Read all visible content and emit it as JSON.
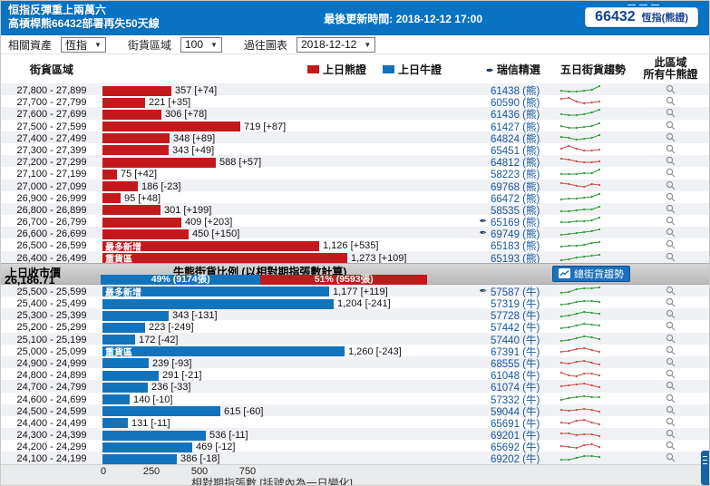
{
  "header": {
    "title_line1": "恒指反彈重上兩萬六",
    "title_line2": "高槓桿熊66432部署再失50天線",
    "update_time": "最後更新時間: 2018-12-12 17:00",
    "badge_code": "66432",
    "badge_label": "恆指(熊證)"
  },
  "filters": [
    {
      "label": "相關資產",
      "value": "恆指"
    },
    {
      "label": "街貨區域",
      "value": "100"
    },
    {
      "label": "過往圖表",
      "value": "2018-12-12"
    }
  ],
  "columns": {
    "range": "街貨區域",
    "legend_bear": "上日熊證",
    "legend_bull": "上日牛證",
    "picked": "瑞信精選",
    "trend": "五日街貨趨勢",
    "all_line1": "此區域",
    "all_line2": "所有牛熊證"
  },
  "divider": {
    "close_label": "上日收市價",
    "close_value": "26,186.71",
    "ratio_title": "牛熊街貨比例 (以相對期指張數計算)",
    "bull_segment": "49% (9174張)",
    "bear_segment": "51% (9593張)",
    "trend_button": "總街貨趨勢"
  },
  "axis": {
    "ticks": [
      "0",
      "250",
      "500",
      "750"
    ],
    "label": "相對期指張數 [括號內為一日變化]"
  },
  "colors": {
    "bear": "#c3191d",
    "bull": "#1273bd",
    "header": "#0873c2",
    "spark_up": "#2f9a3a",
    "spark_down": "#d24a45"
  },
  "bear_rows": [
    {
      "range": "27,800 - 27,899",
      "value": 357,
      "display": "357 [+74]",
      "tag": "",
      "code": "61438",
      "type": "熊",
      "picked": false,
      "trend": "up",
      "spark": [
        4,
        3,
        3,
        4,
        5,
        9
      ]
    },
    {
      "range": "27,700 - 27,799",
      "value": 221,
      "display": "221 [+35]",
      "tag": "",
      "code": "60590",
      "type": "熊",
      "picked": false,
      "trend": "down",
      "spark": [
        8,
        9,
        5,
        3,
        4,
        5
      ]
    },
    {
      "range": "27,600 - 27,699",
      "value": 306,
      "display": "306 [+78]",
      "tag": "",
      "code": "61436",
      "type": "熊",
      "picked": false,
      "trend": "up",
      "spark": [
        4,
        3,
        3,
        4,
        6,
        9
      ]
    },
    {
      "range": "27,500 - 27,599",
      "value": 719,
      "display": "719 [+87]",
      "tag": "",
      "code": "61427",
      "type": "熊",
      "picked": false,
      "trend": "up",
      "spark": [
        5,
        3,
        3,
        4,
        5,
        8
      ]
    },
    {
      "range": "27,400 - 27,499",
      "value": 348,
      "display": "348 [+89]",
      "tag": "",
      "code": "64824",
      "type": "熊",
      "picked": false,
      "trend": "up",
      "spark": [
        6,
        5,
        3,
        4,
        5,
        8
      ]
    },
    {
      "range": "27,300 - 27,399",
      "value": 343,
      "display": "343 [+49]",
      "tag": "",
      "code": "65451",
      "type": "熊",
      "picked": false,
      "trend": "down",
      "spark": [
        6,
        9,
        6,
        4,
        4,
        5
      ]
    },
    {
      "range": "27,200 - 27,299",
      "value": 588,
      "display": "588 [+57]",
      "tag": "",
      "code": "64812",
      "type": "熊",
      "picked": false,
      "trend": "down",
      "spark": [
        8,
        7,
        5,
        4,
        4,
        5
      ]
    },
    {
      "range": "27,100 - 27,199",
      "value": 75,
      "display": "75 [+42]",
      "tag": "",
      "code": "58223",
      "type": "熊",
      "picked": false,
      "trend": "up",
      "spark": [
        4,
        4,
        4,
        5,
        5,
        9
      ]
    },
    {
      "range": "27,000 - 27,099",
      "value": 186,
      "display": "186 [-23]",
      "tag": "",
      "code": "69768",
      "type": "熊",
      "picked": false,
      "trend": "down",
      "spark": [
        8,
        7,
        5,
        4,
        7,
        6
      ]
    },
    {
      "range": "26,900 - 26,999",
      "value": 95,
      "display": "95 [+48]",
      "tag": "",
      "code": "66472",
      "type": "熊",
      "picked": false,
      "trend": "up",
      "spark": [
        3,
        4,
        4,
        5,
        6,
        9
      ]
    },
    {
      "range": "26,800 - 26,899",
      "value": 301,
      "display": "301 [+199]",
      "tag": "",
      "code": "58535",
      "type": "熊",
      "picked": false,
      "trend": "up",
      "spark": [
        3,
        3,
        4,
        5,
        5,
        8
      ]
    },
    {
      "range": "26,700 - 26,799",
      "value": 409,
      "display": "409 [+203]",
      "tag": "",
      "code": "65169",
      "type": "熊",
      "picked": true,
      "trend": "up",
      "spark": [
        4,
        4,
        5,
        5,
        6,
        9
      ]
    },
    {
      "range": "26,600 - 26,699",
      "value": 450,
      "display": "450 [+150]",
      "tag": "",
      "code": "69749",
      "type": "熊",
      "picked": true,
      "trend": "up",
      "spark": [
        3,
        4,
        5,
        6,
        7,
        9
      ]
    },
    {
      "range": "26,500 - 26,599",
      "value": 1126,
      "display": "1,126 [+535]",
      "tag": "最多新增",
      "code": "65183",
      "type": "熊",
      "picked": false,
      "trend": "up",
      "spark": [
        3,
        4,
        4,
        5,
        7,
        8
      ]
    },
    {
      "range": "26,400 - 26,499",
      "value": 1273,
      "display": "1,273 [+109]",
      "tag": "重貨區",
      "code": "65193",
      "type": "熊",
      "picked": false,
      "trend": "up",
      "spark": [
        2,
        3,
        5,
        6,
        7,
        8
      ]
    }
  ],
  "bull_rows": [
    {
      "range": "25,500 - 25,599",
      "value": 1177,
      "display": "1,177 [+119]",
      "tag": "最多新增",
      "code": "57587",
      "type": "牛",
      "picked": true,
      "trend": "up",
      "spark": [
        3,
        4,
        7,
        8,
        8,
        9
      ]
    },
    {
      "range": "25,400 - 25,499",
      "value": 1204,
      "display": "1,204 [-241]",
      "tag": "",
      "code": "57319",
      "type": "牛",
      "picked": false,
      "trend": "up",
      "spark": [
        3,
        4,
        6,
        7,
        7,
        6
      ]
    },
    {
      "range": "25,300 - 25,399",
      "value": 343,
      "display": "343 [-131]",
      "tag": "",
      "code": "57728",
      "type": "牛",
      "picked": false,
      "trend": "up",
      "spark": [
        3,
        4,
        6,
        8,
        7,
        6
      ]
    },
    {
      "range": "25,200 - 25,299",
      "value": 223,
      "display": "223 [-249]",
      "tag": "",
      "code": "57442",
      "type": "牛",
      "picked": false,
      "trend": "up",
      "spark": [
        3,
        4,
        6,
        8,
        7,
        6
      ]
    },
    {
      "range": "25,100 - 25,199",
      "value": 172,
      "display": "172 [-42]",
      "tag": "",
      "code": "57440",
      "type": "牛",
      "picked": false,
      "trend": "up",
      "spark": [
        3,
        4,
        6,
        8,
        7,
        5
      ]
    },
    {
      "range": "25,000 - 25,099",
      "value": 1260,
      "display": "1,260 [-243]",
      "tag": "重貨區",
      "code": "67391",
      "type": "牛",
      "picked": false,
      "trend": "down",
      "spark": [
        4,
        5,
        7,
        8,
        6,
        4
      ]
    },
    {
      "range": "24,900 - 24,999",
      "value": 239,
      "display": "239 [-93]",
      "tag": "",
      "code": "68555",
      "type": "牛",
      "picked": false,
      "trend": "down",
      "spark": [
        5,
        4,
        6,
        7,
        5,
        3
      ]
    },
    {
      "range": "24,800 - 24,899",
      "value": 291,
      "display": "291 [-21]",
      "tag": "",
      "code": "61048",
      "type": "牛",
      "picked": false,
      "trend": "down",
      "spark": [
        7,
        4,
        3,
        6,
        6,
        4
      ]
    },
    {
      "range": "24,700 - 24,799",
      "value": 236,
      "display": "236 [-33]",
      "tag": "",
      "code": "61074",
      "type": "牛",
      "picked": false,
      "trend": "down",
      "spark": [
        5,
        6,
        7,
        8,
        6,
        4
      ]
    },
    {
      "range": "24,600 - 24,699",
      "value": 140,
      "display": "140 [-10]",
      "tag": "",
      "code": "57332",
      "type": "牛",
      "picked": false,
      "trend": "up",
      "spark": [
        4,
        6,
        7,
        8,
        7,
        7
      ]
    },
    {
      "range": "24,500 - 24,599",
      "value": 615,
      "display": "615 [-60]",
      "tag": "",
      "code": "59044",
      "type": "牛",
      "picked": false,
      "trend": "down",
      "spark": [
        6,
        5,
        6,
        7,
        6,
        4
      ]
    },
    {
      "range": "24,400 - 24,499",
      "value": 131,
      "display": "131 [-11]",
      "tag": "",
      "code": "65691",
      "type": "牛",
      "picked": false,
      "trend": "down",
      "spark": [
        5,
        4,
        7,
        8,
        5,
        3
      ]
    },
    {
      "range": "24,300 - 24,399",
      "value": 536,
      "display": "536 [-11]",
      "tag": "",
      "code": "69201",
      "type": "牛",
      "picked": false,
      "trend": "down",
      "spark": [
        6,
        6,
        4,
        5,
        5,
        3
      ]
    },
    {
      "range": "24,200 - 24,299",
      "value": 469,
      "display": "469 [-12]",
      "tag": "",
      "code": "65692",
      "type": "牛",
      "picked": false,
      "trend": "down",
      "spark": [
        5,
        4,
        3,
        6,
        7,
        4
      ]
    },
    {
      "range": "24,100 - 24,199",
      "value": 386,
      "display": "386 [-18]",
      "tag": "",
      "code": "69202",
      "type": "牛",
      "picked": false,
      "trend": "up",
      "spark": [
        3,
        3,
        5,
        7,
        7,
        6
      ]
    }
  ],
  "chart_data": {
    "type": "bar",
    "orientation": "horizontal",
    "title": "牛熊街貨比例 (以相對期指張數計算)",
    "xlabel": "相對期指張數 [括號內為一日變化]",
    "xlim": [
      0,
      1400
    ],
    "xticks": [
      0,
      250,
      500,
      750
    ],
    "legend": [
      "上日熊證",
      "上日牛證"
    ],
    "series": [
      {
        "name": "上日熊證",
        "color": "#c3191d",
        "categories": [
          "27,800-27,899",
          "27,700-27,799",
          "27,600-27,699",
          "27,500-27,599",
          "27,400-27,499",
          "27,300-27,399",
          "27,200-27,299",
          "27,100-27,199",
          "27,000-27,099",
          "26,900-26,999",
          "26,800-26,899",
          "26,700-26,799",
          "26,600-26,699",
          "26,500-26,599",
          "26,400-26,499"
        ],
        "values": [
          357,
          221,
          306,
          719,
          348,
          343,
          588,
          75,
          186,
          95,
          301,
          409,
          450,
          1126,
          1273
        ],
        "one_day_change": [
          74,
          35,
          78,
          87,
          89,
          49,
          57,
          42,
          -23,
          48,
          199,
          203,
          150,
          535,
          109
        ]
      },
      {
        "name": "上日牛證",
        "color": "#1273bd",
        "categories": [
          "25,500-25,599",
          "25,400-25,499",
          "25,300-25,399",
          "25,200-25,299",
          "25,100-25,199",
          "25,000-25,099",
          "24,900-24,999",
          "24,800-24,899",
          "24,700-24,799",
          "24,600-24,699",
          "24,500-24,599",
          "24,400-24,499",
          "24,300-24,399",
          "24,200-24,299",
          "24,100-24,199"
        ],
        "values": [
          1177,
          1204,
          343,
          223,
          172,
          1260,
          239,
          291,
          236,
          140,
          615,
          131,
          536,
          469,
          386
        ],
        "one_day_change": [
          119,
          -241,
          -131,
          -249,
          -42,
          -243,
          -93,
          -21,
          -33,
          -10,
          -60,
          -11,
          -11,
          -12,
          -18
        ]
      }
    ],
    "annotations": {
      "prev_close": 26186.71,
      "bull_share": "49% (9174張)",
      "bear_share": "51% (9593張)"
    }
  }
}
